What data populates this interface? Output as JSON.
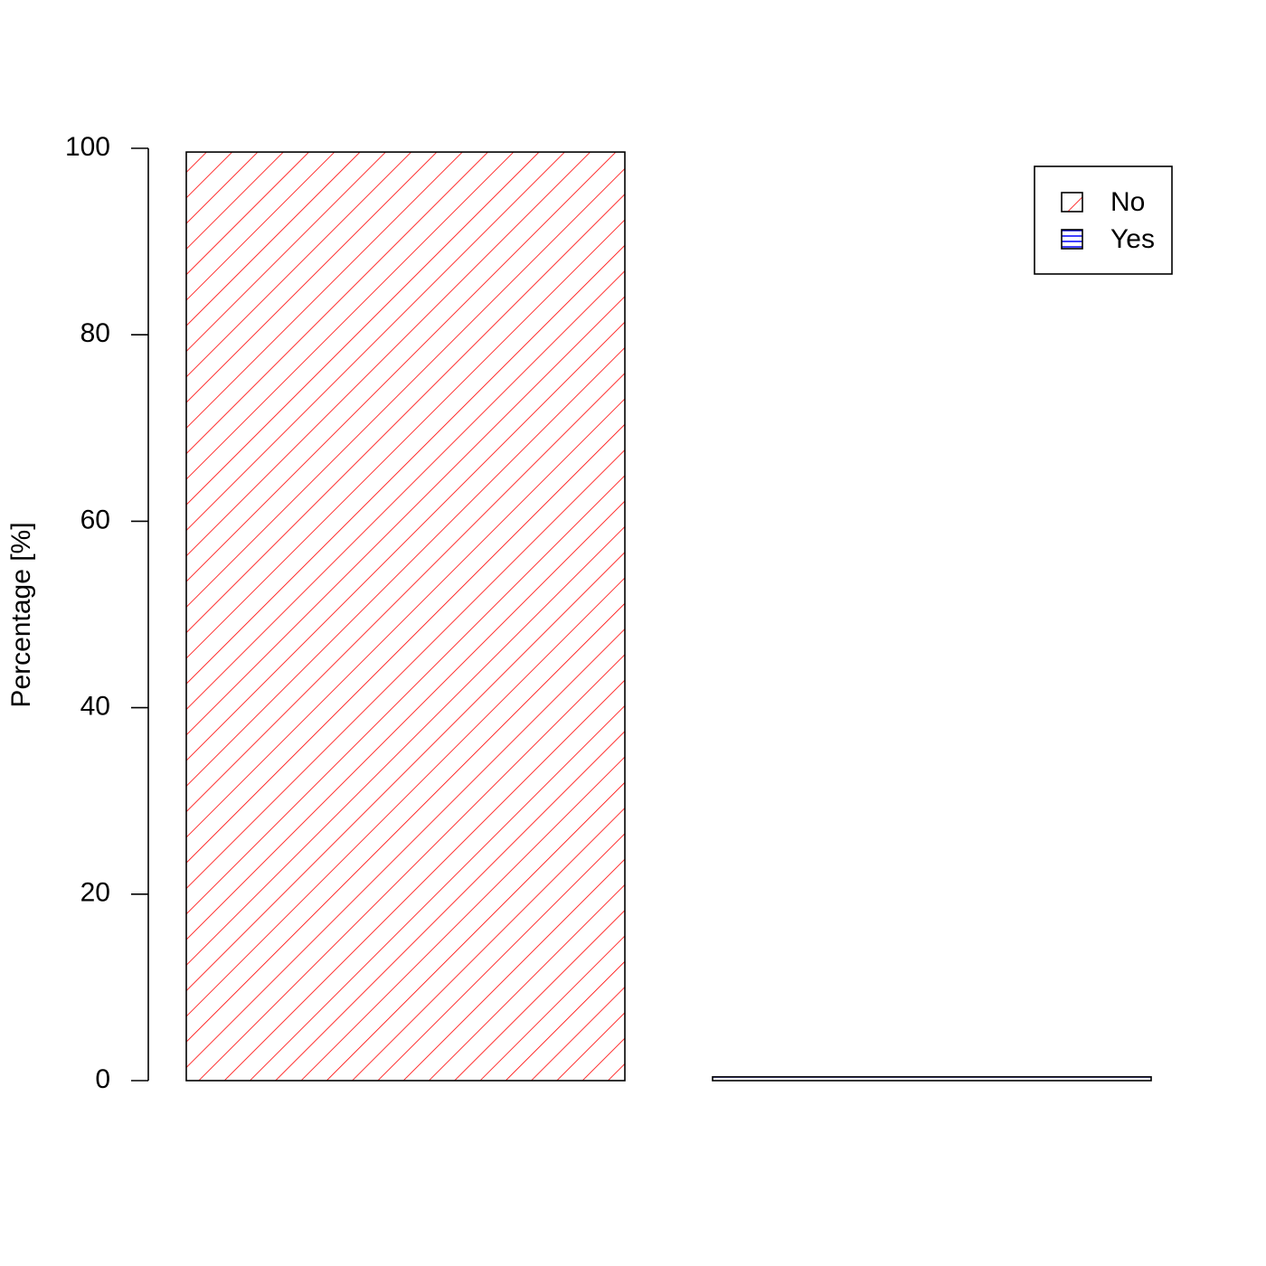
{
  "chart_data": {
    "type": "bar",
    "y_label": "Percentage [%]",
    "categories": [
      null,
      null
    ],
    "series": [
      {
        "name": "No",
        "color": "#ff0000",
        "hatch": "diagonal",
        "values": [
          99.6,
          null
        ]
      },
      {
        "name": "Yes",
        "color": "#0000ff",
        "hatch": "horizontal",
        "values": [
          null,
          0.4
        ]
      }
    ],
    "ylim": [
      0,
      100
    ],
    "yticks": [
      0,
      20,
      40,
      60,
      80,
      100
    ],
    "legend": "top-right"
  }
}
